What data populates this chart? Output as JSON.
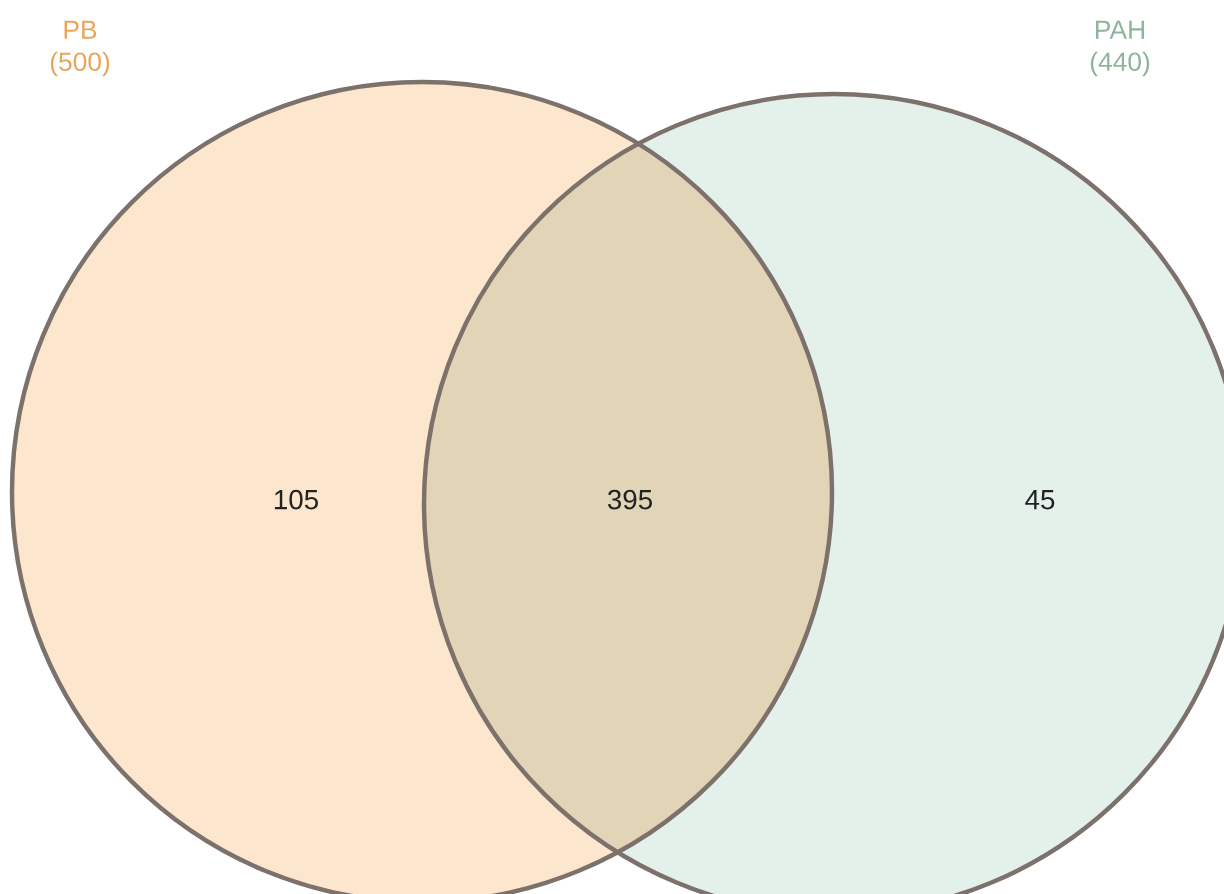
{
  "chart_data": {
    "type": "other",
    "categories": [
      "PB",
      null,
      "PAH"
    ],
    "values": [
      105,
      395,
      45
    ],
    "colors": [
      "#fce6cd",
      "#e2d4b6",
      "#e4f0ea"
    ],
    "totals": [
      "(500)",
      "(440)"
    ],
    "data_labels": true
  }
}
